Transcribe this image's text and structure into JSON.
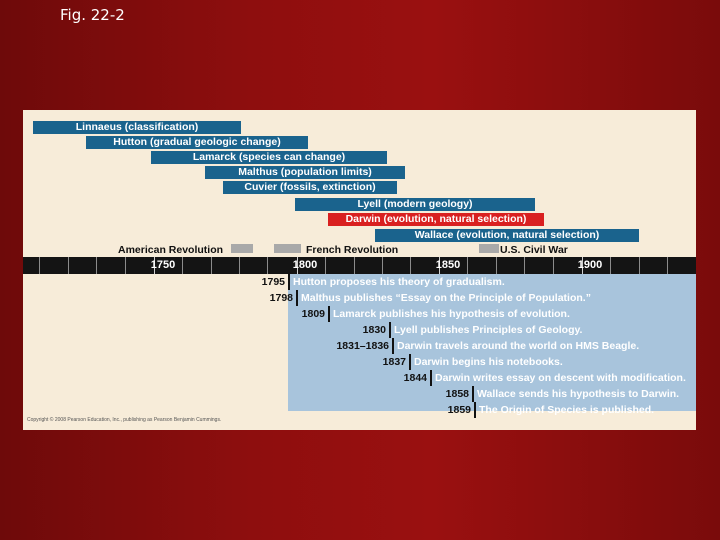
{
  "slide_title": "Fig. 22-2",
  "bars": [
    {
      "label": "Linnaeus (classification)",
      "color": "#1a638d"
    },
    {
      "label": "Hutton (gradual geologic change)",
      "color": "#1a638d"
    },
    {
      "label": "Lamarck (species can change)",
      "color": "#1a638d"
    },
    {
      "label": "Malthus (population limits)",
      "color": "#1a638d"
    },
    {
      "label": "Cuvier (fossils, extinction)",
      "color": "#1a638d"
    },
    {
      "label": "Lyell (modern geology)",
      "color": "#1a638d"
    },
    {
      "label": "Darwin (evolution, natural selection)",
      "color": "#d92020"
    },
    {
      "label": "Wallace (evolution, natural selection)",
      "color": "#1a638d"
    }
  ],
  "historical_events": [
    {
      "label": "American Revolution"
    },
    {
      "label": "French Revolution"
    },
    {
      "label": "U.S. Civil War"
    }
  ],
  "timeline_years": [
    "1750",
    "1800",
    "1850",
    "1900"
  ],
  "events": [
    {
      "year": "1795",
      "text": "Hutton proposes his theory of gradualism."
    },
    {
      "year": "1798",
      "text": "Malthus publishes “Essay on the Principle of Population.”"
    },
    {
      "year": "1809",
      "text": "Lamarck publishes his hypothesis of evolution."
    },
    {
      "year": "1830",
      "text": "Lyell publishes Principles of Geology."
    },
    {
      "year": "1831–1836",
      "text": "Darwin travels around the world on HMS Beagle."
    },
    {
      "year": "1837",
      "text": "Darwin begins his notebooks."
    },
    {
      "year": "1844",
      "text": "Darwin writes essay on descent with modification."
    },
    {
      "year": "1858",
      "text": "Wallace sends his hypothesis to Darwin."
    },
    {
      "year": "1859",
      "text": "The Origin of Species is published."
    }
  ],
  "credit": "Copyright © 2008 Pearson Education, Inc., publishing as Pearson Benjamin Cummings."
}
